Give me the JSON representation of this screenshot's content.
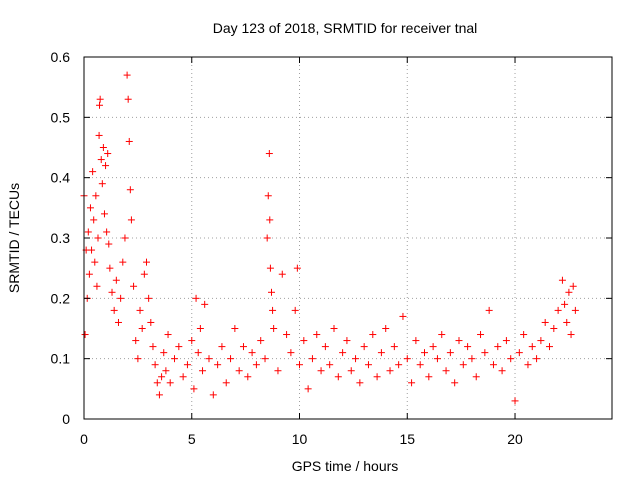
{
  "chart_data": {
    "type": "scatter",
    "title": "Day 123 of 2018, SRMTID for receiver tnal",
    "xlabel": "GPS time / hours",
    "ylabel": "SRMTID / TECUs",
    "xlim": [
      0,
      24.5
    ],
    "ylim": [
      0,
      0.6
    ],
    "x_ticks": [
      0,
      5,
      10,
      15,
      20
    ],
    "x_tick_labels": [
      "0",
      "5",
      "10",
      "15",
      "20"
    ],
    "y_ticks": [
      0,
      0.1,
      0.2,
      0.3,
      0.4,
      0.5,
      0.6
    ],
    "y_tick_labels": [
      "0",
      "0.1",
      "0.2",
      "0.3",
      "0.4",
      "0.5",
      "0.6"
    ],
    "grid": true,
    "marker": "plus",
    "marker_color": "#ff0000",
    "series": [
      {
        "name": "SRMTID",
        "points": [
          [
            0.0,
            0.37
          ],
          [
            0.05,
            0.14
          ],
          [
            0.1,
            0.28
          ],
          [
            0.15,
            0.2
          ],
          [
            0.2,
            0.31
          ],
          [
            0.25,
            0.24
          ],
          [
            0.3,
            0.35
          ],
          [
            0.35,
            0.28
          ],
          [
            0.4,
            0.41
          ],
          [
            0.45,
            0.33
          ],
          [
            0.5,
            0.26
          ],
          [
            0.55,
            0.37
          ],
          [
            0.6,
            0.22
          ],
          [
            0.65,
            0.3
          ],
          [
            0.7,
            0.47
          ],
          [
            0.72,
            0.52
          ],
          [
            0.75,
            0.53
          ],
          [
            0.8,
            0.43
          ],
          [
            0.85,
            0.39
          ],
          [
            0.9,
            0.45
          ],
          [
            0.95,
            0.34
          ],
          [
            1.0,
            0.42
          ],
          [
            1.05,
            0.31
          ],
          [
            1.1,
            0.44
          ],
          [
            1.15,
            0.29
          ],
          [
            1.2,
            0.25
          ],
          [
            1.3,
            0.21
          ],
          [
            1.4,
            0.18
          ],
          [
            1.5,
            0.23
          ],
          [
            1.6,
            0.16
          ],
          [
            1.7,
            0.2
          ],
          [
            1.8,
            0.26
          ],
          [
            1.9,
            0.3
          ],
          [
            2.0,
            0.57
          ],
          [
            2.05,
            0.53
          ],
          [
            2.1,
            0.46
          ],
          [
            2.15,
            0.38
          ],
          [
            2.2,
            0.33
          ],
          [
            2.3,
            0.22
          ],
          [
            2.4,
            0.13
          ],
          [
            2.5,
            0.1
          ],
          [
            2.6,
            0.18
          ],
          [
            2.7,
            0.15
          ],
          [
            2.8,
            0.24
          ],
          [
            2.9,
            0.26
          ],
          [
            3.0,
            0.2
          ],
          [
            3.1,
            0.16
          ],
          [
            3.2,
            0.12
          ],
          [
            3.3,
            0.09
          ],
          [
            3.4,
            0.06
          ],
          [
            3.5,
            0.04
          ],
          [
            3.6,
            0.07
          ],
          [
            3.7,
            0.11
          ],
          [
            3.8,
            0.08
          ],
          [
            3.9,
            0.14
          ],
          [
            4.0,
            0.06
          ],
          [
            4.2,
            0.1
          ],
          [
            4.4,
            0.12
          ],
          [
            4.6,
            0.07
          ],
          [
            4.8,
            0.09
          ],
          [
            5.0,
            0.13
          ],
          [
            5.1,
            0.05
          ],
          [
            5.2,
            0.2
          ],
          [
            5.3,
            0.11
          ],
          [
            5.4,
            0.15
          ],
          [
            5.5,
            0.08
          ],
          [
            5.6,
            0.19
          ],
          [
            5.8,
            0.1
          ],
          [
            6.0,
            0.04
          ],
          [
            6.2,
            0.09
          ],
          [
            6.4,
            0.12
          ],
          [
            6.6,
            0.06
          ],
          [
            6.8,
            0.1
          ],
          [
            7.0,
            0.15
          ],
          [
            7.2,
            0.08
          ],
          [
            7.4,
            0.12
          ],
          [
            7.6,
            0.07
          ],
          [
            7.8,
            0.11
          ],
          [
            8.0,
            0.09
          ],
          [
            8.2,
            0.13
          ],
          [
            8.4,
            0.1
          ],
          [
            8.5,
            0.3
          ],
          [
            8.55,
            0.37
          ],
          [
            8.6,
            0.44
          ],
          [
            8.62,
            0.33
          ],
          [
            8.65,
            0.25
          ],
          [
            8.7,
            0.21
          ],
          [
            8.75,
            0.18
          ],
          [
            8.8,
            0.15
          ],
          [
            9.0,
            0.08
          ],
          [
            9.2,
            0.24
          ],
          [
            9.4,
            0.14
          ],
          [
            9.6,
            0.11
          ],
          [
            9.8,
            0.18
          ],
          [
            9.9,
            0.25
          ],
          [
            10.0,
            0.09
          ],
          [
            10.2,
            0.13
          ],
          [
            10.4,
            0.05
          ],
          [
            10.6,
            0.1
          ],
          [
            10.8,
            0.14
          ],
          [
            11.0,
            0.08
          ],
          [
            11.2,
            0.12
          ],
          [
            11.4,
            0.09
          ],
          [
            11.6,
            0.15
          ],
          [
            11.8,
            0.07
          ],
          [
            12.0,
            0.11
          ],
          [
            12.2,
            0.13
          ],
          [
            12.4,
            0.08
          ],
          [
            12.6,
            0.1
          ],
          [
            12.8,
            0.06
          ],
          [
            13.0,
            0.12
          ],
          [
            13.2,
            0.09
          ],
          [
            13.4,
            0.14
          ],
          [
            13.6,
            0.07
          ],
          [
            13.8,
            0.11
          ],
          [
            14.0,
            0.15
          ],
          [
            14.2,
            0.08
          ],
          [
            14.4,
            0.12
          ],
          [
            14.6,
            0.09
          ],
          [
            14.8,
            0.17
          ],
          [
            15.0,
            0.1
          ],
          [
            15.2,
            0.06
          ],
          [
            15.4,
            0.13
          ],
          [
            15.6,
            0.09
          ],
          [
            15.8,
            0.11
          ],
          [
            16.0,
            0.07
          ],
          [
            16.2,
            0.12
          ],
          [
            16.4,
            0.1
          ],
          [
            16.6,
            0.14
          ],
          [
            16.8,
            0.08
          ],
          [
            17.0,
            0.11
          ],
          [
            17.2,
            0.06
          ],
          [
            17.4,
            0.13
          ],
          [
            17.6,
            0.09
          ],
          [
            17.8,
            0.12
          ],
          [
            18.0,
            0.1
          ],
          [
            18.2,
            0.07
          ],
          [
            18.4,
            0.14
          ],
          [
            18.6,
            0.11
          ],
          [
            18.8,
            0.18
          ],
          [
            19.0,
            0.09
          ],
          [
            19.2,
            0.12
          ],
          [
            19.4,
            0.08
          ],
          [
            19.6,
            0.13
          ],
          [
            19.8,
            0.1
          ],
          [
            20.0,
            0.03
          ],
          [
            20.2,
            0.11
          ],
          [
            20.4,
            0.14
          ],
          [
            20.6,
            0.09
          ],
          [
            20.8,
            0.12
          ],
          [
            21.0,
            0.1
          ],
          [
            21.2,
            0.13
          ],
          [
            21.4,
            0.16
          ],
          [
            21.6,
            0.12
          ],
          [
            21.8,
            0.15
          ],
          [
            22.0,
            0.18
          ],
          [
            22.2,
            0.23
          ],
          [
            22.3,
            0.19
          ],
          [
            22.4,
            0.16
          ],
          [
            22.5,
            0.21
          ],
          [
            22.6,
            0.14
          ],
          [
            22.7,
            0.22
          ],
          [
            22.8,
            0.18
          ]
        ]
      }
    ]
  }
}
